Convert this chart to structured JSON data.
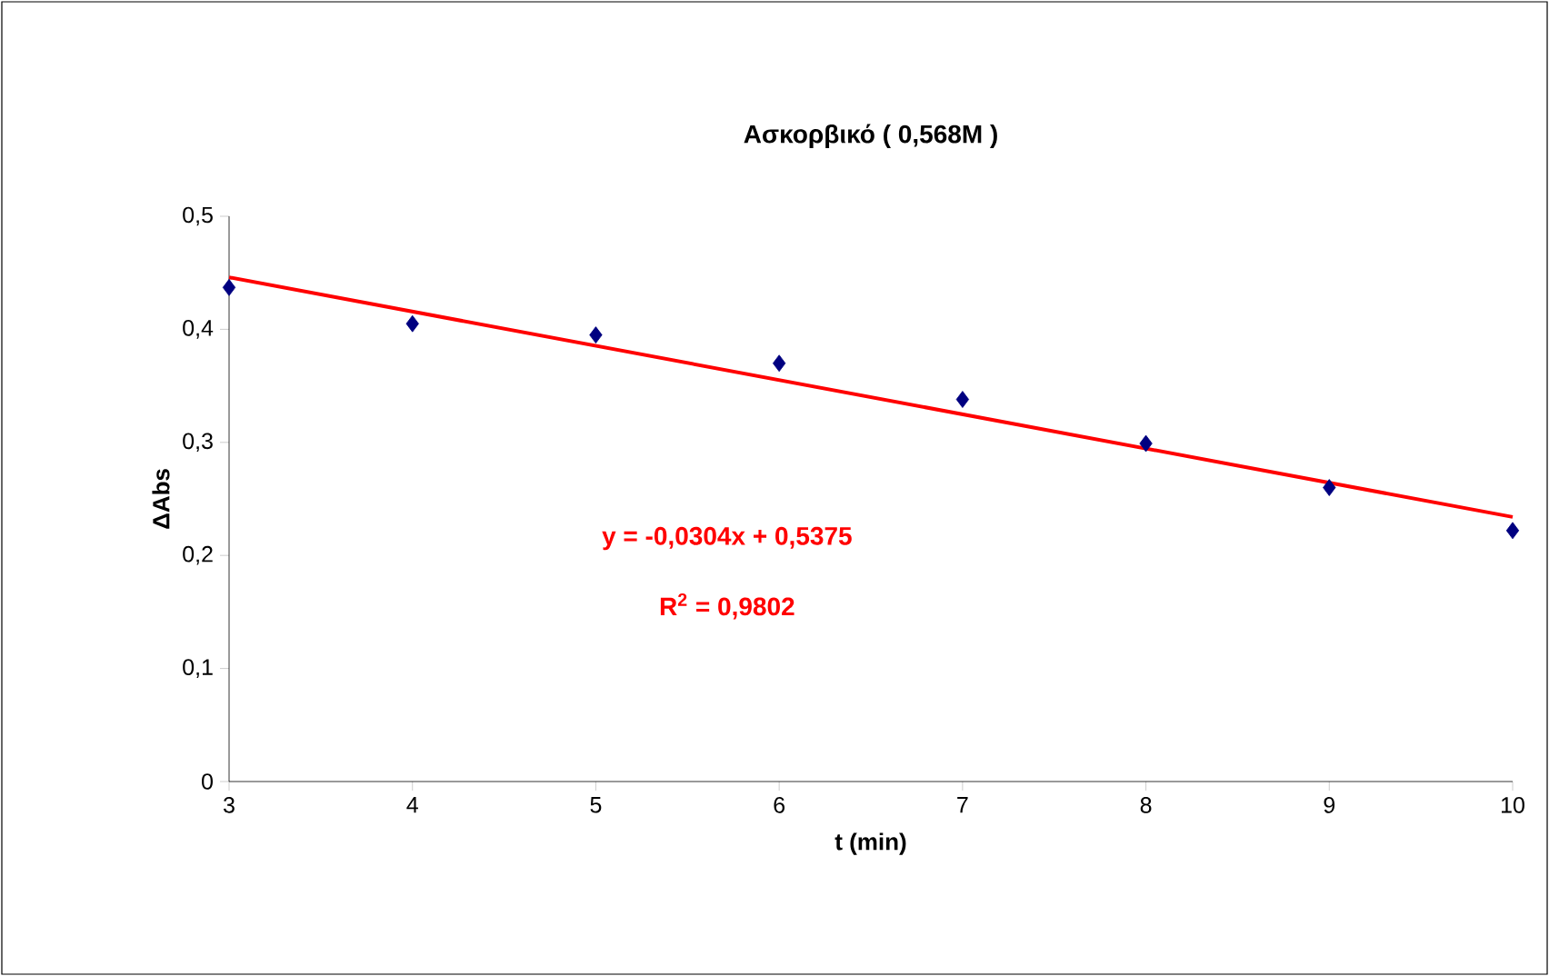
{
  "chart_data": {
    "type": "scatter",
    "title": "Ασκορβικό   ( 0,568M )",
    "xlabel": "t (min)",
    "ylabel": "ΔAbs",
    "x": [
      3,
      4,
      5,
      6,
      7,
      8,
      9,
      10
    ],
    "series": [
      {
        "color": "#000080",
        "marker": "diamond",
        "values": [
          0.437,
          0.405,
          0.395,
          0.37,
          0.338,
          0.299,
          0.26,
          0.222
        ]
      },
      {
        "type": "line",
        "color": "#ff0000",
        "marker": "none",
        "x": [
          3,
          10
        ],
        "values": [
          0.446,
          0.234
        ]
      }
    ],
    "xlim": [
      3,
      10
    ],
    "xticks": [
      3,
      4,
      5,
      6,
      7,
      8,
      9,
      10
    ],
    "ylim": [
      0,
      0.5
    ],
    "yticks": [
      {
        "value": 0,
        "label": "0"
      },
      {
        "value": 0.1,
        "label": "0,1"
      },
      {
        "value": 0.2,
        "label": "0,2"
      },
      {
        "value": 0.3,
        "label": "0,3"
      },
      {
        "value": 0.4,
        "label": "0,4"
      },
      {
        "value": 0.5,
        "label": "0,5"
      }
    ],
    "annotations": [
      "y = -0,0304x + 0,5375",
      "R$^{2}$ = 0,9802"
    ],
    "grid": false
  }
}
